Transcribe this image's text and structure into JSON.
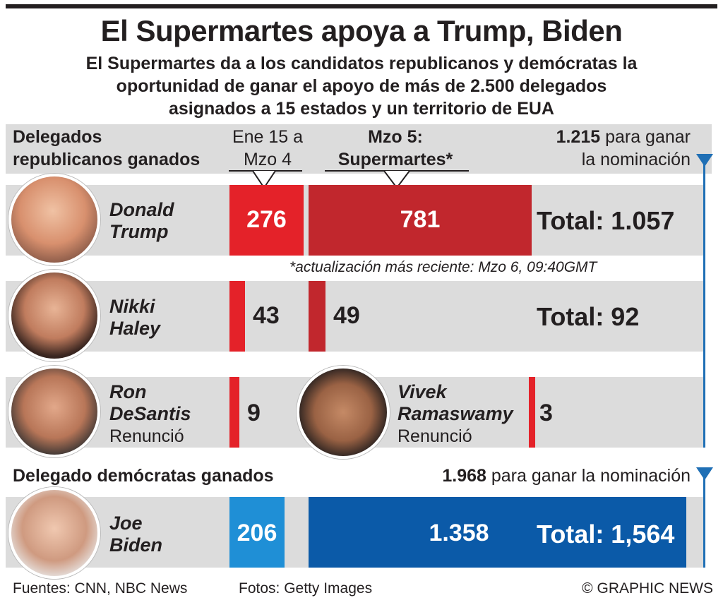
{
  "title": "El Supermartes apoya a Trump, Biden",
  "subtitle": [
    "El Supermartes da a los candidatos republicanos y demócratas la",
    "oportunidad de ganar el apoyo de más de 2.500 delegados",
    "asignados a 15 estados y un territorio de EUA"
  ],
  "republican": {
    "header": [
      "Delegados",
      "republicanos ganados"
    ],
    "period1": [
      "Ene 15 a",
      "Mzo 4"
    ],
    "period2": [
      "Mzo 5:",
      "Supermartes*"
    ],
    "threshold_value": "1.215",
    "threshold_text": [
      " para ganar",
      "la nominación"
    ],
    "note": "*actualización más reciente: Mzo 6, 09:40GMT"
  },
  "democrat": {
    "header": "Delegado demócratas ganados",
    "threshold_value": "1.968",
    "threshold_text": " para ganar la nominación"
  },
  "candidates": {
    "trump": {
      "name": [
        "Donald",
        "Trump"
      ],
      "v1": "276",
      "v2": "781",
      "total": "Total: 1.057"
    },
    "haley": {
      "name": [
        "Nikki",
        "Haley"
      ],
      "v1": "43",
      "v2": "49",
      "total": "Total: 92"
    },
    "desantis": {
      "name": [
        "Ron",
        "DeSantis"
      ],
      "status": "Renunció",
      "v1": "9"
    },
    "ramaswamy": {
      "name": [
        "Vivek",
        "Ramaswamy"
      ],
      "status": "Renunció",
      "v1": "3"
    },
    "biden": {
      "name": [
        "Joe",
        "Biden"
      ],
      "v1": "206",
      "v2": "1.358",
      "total": "Total: 1,564"
    }
  },
  "footer": {
    "sources": "Fuentes: CNN, NBC News",
    "photos": "Fotos: Getty Images",
    "credit": "© GRAPHIC NEWS"
  },
  "colors": {
    "rep_jan": "#e42229",
    "rep_super": "#c1272d",
    "dem_jan": "#1f8fd6",
    "dem_super": "#0b5aa8",
    "band": "#dcdcdc",
    "threshold": "#1f6fb5"
  },
  "chart_data": {
    "type": "bar",
    "stacked": true,
    "categories": [
      "Donald Trump",
      "Nikki Haley",
      "Ron DeSantis",
      "Vivek Ramaswamy",
      "Joe Biden"
    ],
    "series": [
      {
        "name": "Ene 15 a Mzo 4",
        "values": [
          276,
          43,
          9,
          3,
          206
        ]
      },
      {
        "name": "Mzo 5: Supermartes*",
        "values": [
          781,
          49,
          null,
          null,
          1358
        ]
      }
    ],
    "totals": [
      1057,
      92,
      null,
      null,
      1564
    ],
    "thresholds": {
      "republican": 1215,
      "democrat": 1968
    }
  }
}
